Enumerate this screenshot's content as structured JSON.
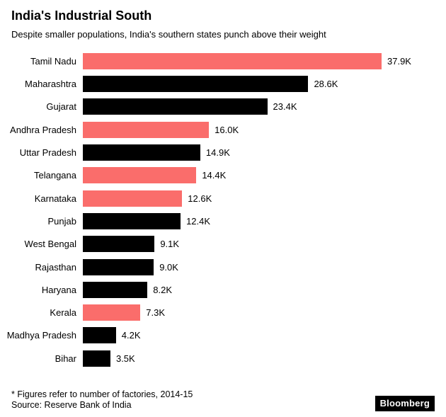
{
  "header": {
    "title": "India's Industrial South",
    "subtitle": "Despite smaller populations, India's southern states punch above their weight"
  },
  "chart_data": {
    "type": "bar",
    "orientation": "horizontal",
    "title": "India's Industrial South",
    "subtitle": "Despite smaller populations, India's southern states punch above their weight",
    "xlabel": "",
    "ylabel": "",
    "xlim": [
      0,
      40
    ],
    "grid": false,
    "legend": "none",
    "unit": "thousands of factories",
    "categories": [
      "Tamil Nadu",
      "Maharashtra",
      "Gujarat",
      "Andhra Pradesh",
      "Uttar Pradesh",
      "Telangana",
      "Karnataka",
      "Punjab",
      "West Bengal",
      "Rajasthan",
      "Haryana",
      "Kerala",
      "Madhya Pradesh",
      "Bihar"
    ],
    "values": [
      37.9,
      28.6,
      23.4,
      16.0,
      14.9,
      14.4,
      12.6,
      12.4,
      9.1,
      9.0,
      8.2,
      7.3,
      4.2,
      3.5
    ],
    "value_labels": [
      "37.9K",
      "28.6K",
      "23.4K",
      "16.0K",
      "14.9K",
      "14.4K",
      "12.6K",
      "12.4K",
      "9.1K",
      "9.0K",
      "8.2K",
      "7.3K",
      "4.2K",
      "3.5K"
    ],
    "highlight": [
      true,
      false,
      false,
      true,
      false,
      true,
      true,
      false,
      false,
      false,
      false,
      true,
      false,
      false
    ],
    "colors": {
      "highlight": "#fa6d6b",
      "default": "#000000"
    }
  },
  "footer": {
    "note": "* Figures refer to number of factories, 2014-15",
    "source": "Source: Reserve Bank of India",
    "brand": "Bloomberg"
  }
}
